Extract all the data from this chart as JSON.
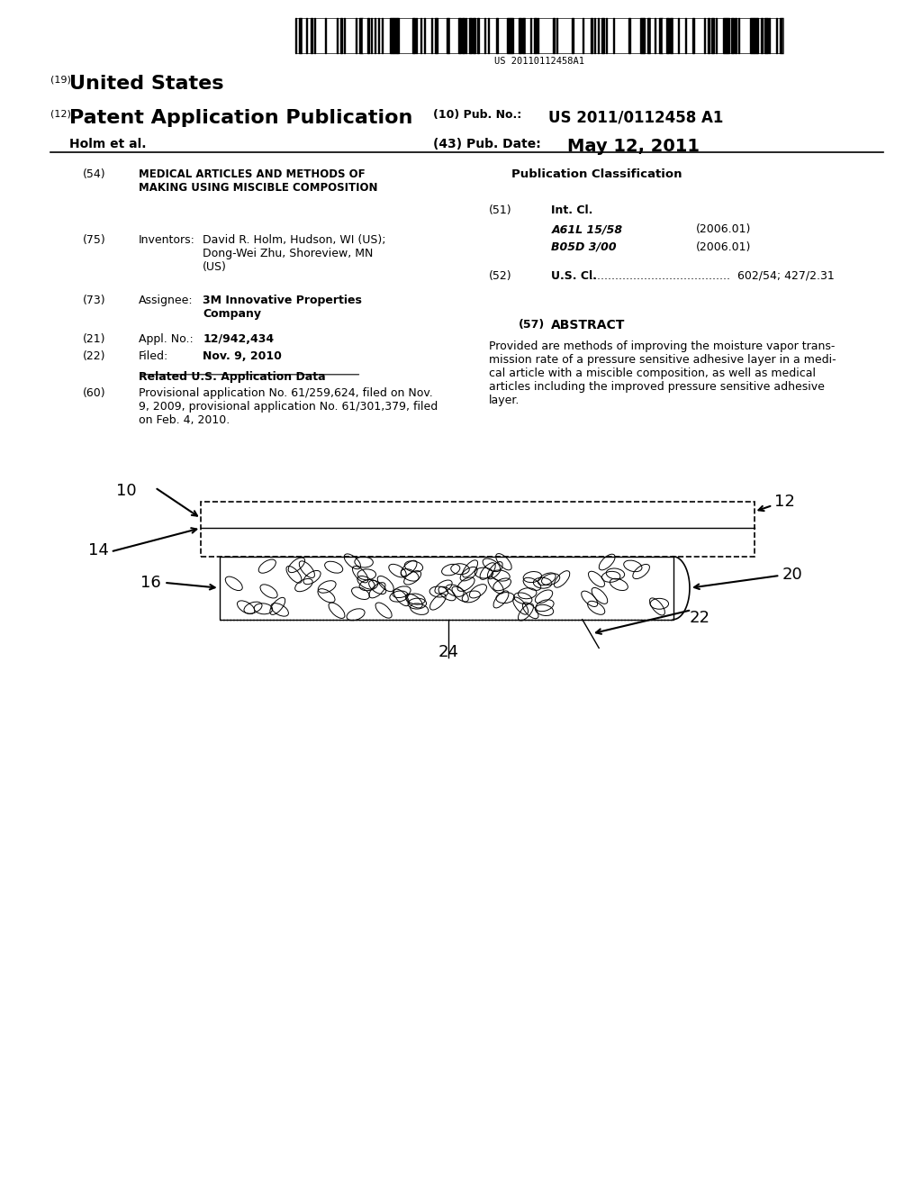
{
  "background_color": "#ffffff",
  "barcode_text": "US 20110112458A1",
  "title_19": "(19)",
  "title_19_text": "United States",
  "title_12": "(12)",
  "title_12_text": "Patent Application Publication",
  "pub_no_label": "(10) Pub. No.:",
  "pub_no_value": "US 2011/0112458 A1",
  "author_label": "Holm et al.",
  "pub_date_label": "(43) Pub. Date:",
  "pub_date_value": "May 12, 2011",
  "field_54_label": "(54)",
  "field_54_title": "MEDICAL ARTICLES AND METHODS OF\nMAKING USING MISCIBLE COMPOSITION",
  "field_75_label": "(75)",
  "field_75_name": "Inventors:",
  "field_75_value": "David R. Holm, Hudson, WI (US);\nDong-Wei Zhu, Shoreview, MN\n(US)",
  "field_73_label": "(73)",
  "field_73_name": "Assignee:",
  "field_73_value": "3M Innovative Properties\nCompany",
  "field_21_label": "(21)",
  "field_21_name": "Appl. No.:",
  "field_21_value": "12/942,434",
  "field_22_label": "(22)",
  "field_22_name": "Filed:",
  "field_22_value": "Nov. 9, 2010",
  "related_header": "Related U.S. Application Data",
  "field_60_label": "(60)",
  "field_60_value": "Provisional application No. 61/259,624, filed on Nov.\n9, 2009, provisional application No. 61/301,379, filed\non Feb. 4, 2010.",
  "pub_class_header": "Publication Classification",
  "field_51_label": "(51)",
  "field_51_name": "Int. Cl.",
  "field_51_a": "A61L 15/58",
  "field_51_a_year": "(2006.01)",
  "field_51_b": "B05D 3/00",
  "field_51_b_year": "(2006.01)",
  "field_52_label": "(52)",
  "field_52_name": "U.S. Cl.",
  "field_52_dots": ".......................................",
  "field_52_value": "602/54; 427/2.31",
  "field_57_label": "(57)",
  "field_57_header": "ABSTRACT",
  "field_57_text": "Provided are methods of improving the moisture vapor trans-\nmission rate of a pressure sensitive adhesive layer in a medi-\ncal article with a miscible composition, as well as medical\narticles including the improved pressure sensitive adhesive\nlayer.",
  "label_10": "10",
  "label_12": "12",
  "label_14": "14",
  "label_16": "16",
  "label_20": "20",
  "label_22": "22",
  "label_24": "24"
}
